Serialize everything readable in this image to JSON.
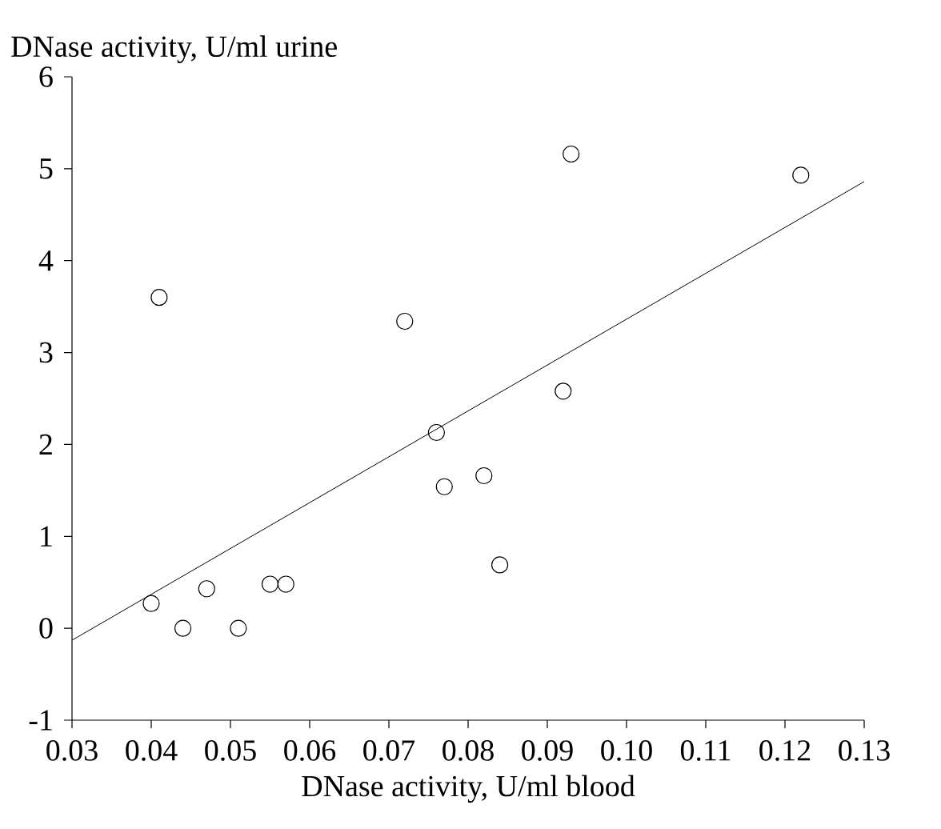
{
  "chart_data": {
    "type": "scatter",
    "xlabel": "DNase activity, U/ml blood",
    "ylabel": "DNase activity, U/ml urine",
    "xlim": [
      0.03,
      0.13
    ],
    "ylim": [
      -1,
      6
    ],
    "xticks": [
      0.03,
      0.04,
      0.05,
      0.06,
      0.07,
      0.08,
      0.09,
      {
        "value": 0.1,
        "label": "0.10"
      },
      0.11,
      0.12,
      0.13
    ],
    "yticks": [
      -1,
      0,
      1,
      2,
      3,
      4,
      5,
      6
    ],
    "series": [
      {
        "marker": "circle",
        "color": "#000000",
        "x": [
          0.04,
          0.041,
          0.044,
          0.047,
          0.051,
          0.055,
          0.057,
          0.072,
          0.076,
          0.077,
          0.082,
          0.084,
          0.092,
          0.093,
          0.122
        ],
        "values": [
          0.27,
          3.6,
          0.0,
          0.43,
          0.0,
          0.48,
          0.48,
          3.34,
          2.13,
          1.54,
          1.66,
          0.69,
          2.58,
          5.16,
          4.93
        ]
      },
      {
        "type": "line",
        "color": "#000000",
        "x": [
          0.03,
          0.13
        ],
        "values": [
          -0.13,
          4.86
        ]
      }
    ]
  }
}
